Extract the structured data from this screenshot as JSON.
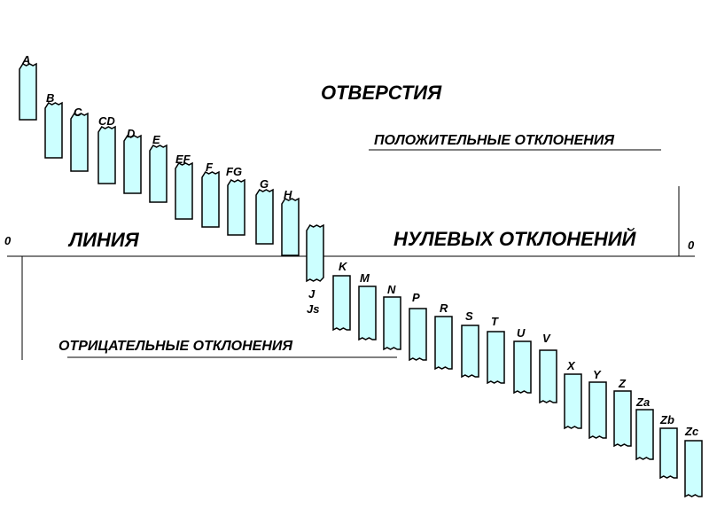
{
  "diagram": {
    "title": "ОТВЕРСТИЯ",
    "positive_label": "ПОЛОЖИТЕЛЬНЫЕ ОТКЛОНЕНИЯ",
    "negative_label": "ОТРИЦАТЕЛЬНЫЕ ОТКЛОНЕНИЯ",
    "zero_line_left": "ЛИНИЯ",
    "zero_line_right": "НУЛЕВЫХ ОТКЛОНЕНИЙ",
    "zero_left": "0",
    "zero_right": "0",
    "fill_color": "#ccffff",
    "stroke_color": "#000000",
    "fields": [
      {
        "label": "A"
      },
      {
        "label": "B"
      },
      {
        "label": "C"
      },
      {
        "label": "CD"
      },
      {
        "label": "D"
      },
      {
        "label": "E"
      },
      {
        "label": "EF"
      },
      {
        "label": "F"
      },
      {
        "label": "FG"
      },
      {
        "label": "G"
      },
      {
        "label": "H"
      },
      {
        "label": "J",
        "label2": "Js"
      },
      {
        "label": "K"
      },
      {
        "label": "M"
      },
      {
        "label": "N"
      },
      {
        "label": "P"
      },
      {
        "label": "R"
      },
      {
        "label": "S"
      },
      {
        "label": "T"
      },
      {
        "label": "U"
      },
      {
        "label": "V"
      },
      {
        "label": "X"
      },
      {
        "label": "Y"
      },
      {
        "label": "Z"
      },
      {
        "label": "Za"
      },
      {
        "label": "Zb"
      },
      {
        "label": "Zc"
      }
    ]
  }
}
